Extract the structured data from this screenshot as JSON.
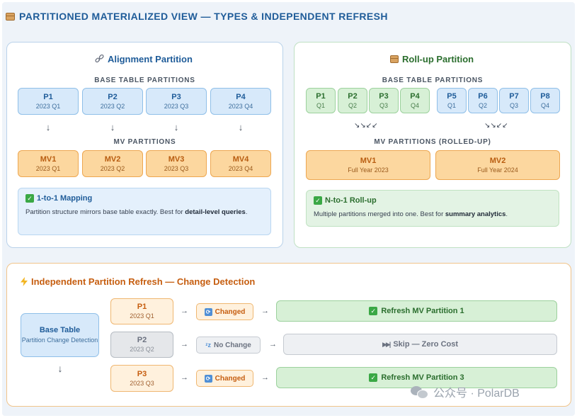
{
  "title": "PARTITIONED MATERIALIZED VIEW — TYPES & INDEPENDENT REFRESH",
  "alignment": {
    "title": "Alignment Partition",
    "base_label": "BASE TABLE PARTITIONS",
    "mv_label": "MV PARTITIONS",
    "base": [
      {
        "name": "P1",
        "sub": "2023 Q1"
      },
      {
        "name": "P2",
        "sub": "2023 Q2"
      },
      {
        "name": "P3",
        "sub": "2023 Q3"
      },
      {
        "name": "P4",
        "sub": "2023 Q4"
      }
    ],
    "mv": [
      {
        "name": "MV1",
        "sub": "2023 Q1"
      },
      {
        "name": "MV2",
        "sub": "2023 Q2"
      },
      {
        "name": "MV3",
        "sub": "2023 Q3"
      },
      {
        "name": "MV4",
        "sub": "2023 Q4"
      }
    ],
    "arrow": "↓",
    "note_title": "1-to-1 Mapping",
    "note_text_1": "Partition structure mirrors base table exactly. Best for ",
    "note_bold": "detail-level queries",
    "note_text_2": "."
  },
  "rollup": {
    "title": "Roll-up Partition",
    "base_label": "BASE TABLE PARTITIONS",
    "mv_label": "MV PARTITIONS (ROLLED-UP)",
    "base": [
      {
        "name": "P1",
        "sub": "Q1"
      },
      {
        "name": "P2",
        "sub": "Q2"
      },
      {
        "name": "P3",
        "sub": "Q3"
      },
      {
        "name": "P4",
        "sub": "Q4"
      },
      {
        "name": "P5",
        "sub": "Q1"
      },
      {
        "name": "P6",
        "sub": "Q2"
      },
      {
        "name": "P7",
        "sub": "Q3"
      },
      {
        "name": "P8",
        "sub": "Q4"
      }
    ],
    "arrows": "↘↘↙↙",
    "mv": [
      {
        "name": "MV1",
        "sub": "Full Year 2023"
      },
      {
        "name": "MV2",
        "sub": "Full Year 2024"
      }
    ],
    "note_title": "N-to-1 Roll-up",
    "note_text_1": "Multiple partitions merged into one. Best for ",
    "note_bold": "summary analytics",
    "note_text_2": "."
  },
  "refresh": {
    "title": "Independent Partition Refresh — Change Detection",
    "source_name": "Base Table",
    "source_sub": "Partition Change Detection",
    "source_arrow": "↓",
    "step_arrow": "→",
    "rows": [
      {
        "name": "P1",
        "sub": "2023 Q1",
        "status": "Changed",
        "result": "Refresh MV Partition 1"
      },
      {
        "name": "P2",
        "sub": "2023 Q2",
        "status": "No Change",
        "result": "Skip — Zero Cost"
      },
      {
        "name": "P3",
        "sub": "2023 Q3",
        "status": "Changed",
        "result": "Refresh MV Partition 3"
      }
    ]
  },
  "watermark": "公众号 · PolarDB",
  "icons": {
    "title": "box-icon",
    "alignment": "link-icon",
    "rollup": "box-icon",
    "refresh": "lightning-icon",
    "note": "check-icon",
    "changed": "refresh-icon",
    "no_change": "sleep-icon",
    "skip": "skip-icon",
    "watermark": "wechat-icon"
  },
  "colors": {
    "title": "#1f5c99",
    "blue_border": "#8fbfe8",
    "orange_border": "#eda751",
    "green_border": "#9cd19d",
    "accent_orange": "#c65e10"
  }
}
